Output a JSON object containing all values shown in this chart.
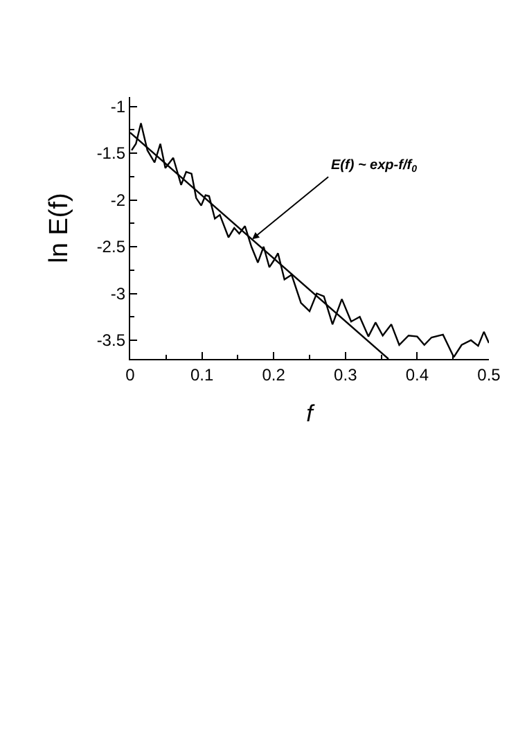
{
  "chart_data": {
    "type": "line",
    "xlabel": "f",
    "ylabel": "ln E(f)",
    "series": [
      {
        "color": "#000000",
        "x": [
          0.002,
          0.008,
          0.015,
          0.024,
          0.034,
          0.042,
          0.049,
          0.06,
          0.071,
          0.078,
          0.0855,
          0.092,
          0.099,
          0.105,
          0.11,
          0.118,
          0.125,
          0.137,
          0.145,
          0.152,
          0.16,
          0.169,
          0.178,
          0.186,
          0.194,
          0.2,
          0.206,
          0.215,
          0.225,
          0.238,
          0.25,
          0.26,
          0.27,
          0.282,
          0.295,
          0.308,
          0.32,
          0.332,
          0.342,
          0.352,
          0.364,
          0.375,
          0.388,
          0.4,
          0.41,
          0.42,
          0.436,
          0.451,
          0.462,
          0.475,
          0.485,
          0.493,
          0.5
        ],
        "values": [
          -1.47,
          -1.4,
          -1.18,
          -1.47,
          -1.6,
          -1.4,
          -1.66,
          -1.55,
          -1.84,
          -1.7,
          -1.72,
          -1.98,
          -2.06,
          -1.95,
          -1.96,
          -2.2,
          -2.16,
          -2.4,
          -2.3,
          -2.36,
          -2.28,
          -2.5,
          -2.67,
          -2.5,
          -2.72,
          -2.65,
          -2.57,
          -2.85,
          -2.8,
          -3.1,
          -3.19,
          -3.0,
          -3.03,
          -3.33,
          -3.06,
          -3.3,
          -3.25,
          -3.46,
          -3.31,
          -3.45,
          -3.33,
          -3.55,
          -3.45,
          -3.46,
          -3.55,
          -3.47,
          -3.44,
          -3.68,
          -3.55,
          -3.5,
          -3.56,
          -3.41,
          -3.53
        ]
      },
      {
        "color": "#000000",
        "x": [
          0,
          0.36
        ],
        "values": [
          -1.28,
          -3.7
        ]
      }
    ],
    "annotations": [
      {
        "text": "E(f) ~ exp-f/f$_{0}$",
        "x": 0.17,
        "y": -2.42
      }
    ],
    "xlim": [
      0,
      0.5
    ],
    "xticks": [
      0,
      0.1,
      0.2,
      0.3,
      0.4,
      0.5
    ],
    "ylim": [
      -3.7,
      -0.9
    ],
    "yticks": [
      -1,
      -1.5,
      -2,
      -2.5,
      -3,
      -3.5
    ],
    "marker": "none",
    "line_style": "solid"
  }
}
